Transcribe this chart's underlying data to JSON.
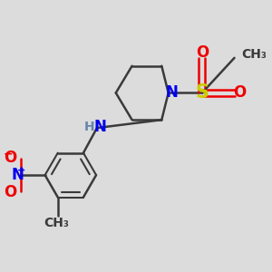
{
  "background_color": "#dcdcdc",
  "fig_size": [
    3.0,
    3.0
  ],
  "dpi": 100,
  "colors": {
    "C": "#3a3a3a",
    "N": "#0000ee",
    "O": "#ee0000",
    "S": "#cccc00",
    "H": "#808080",
    "bond": "#3a3a3a"
  },
  "font_sizes": {
    "large": 12,
    "medium": 10,
    "small": 8
  }
}
